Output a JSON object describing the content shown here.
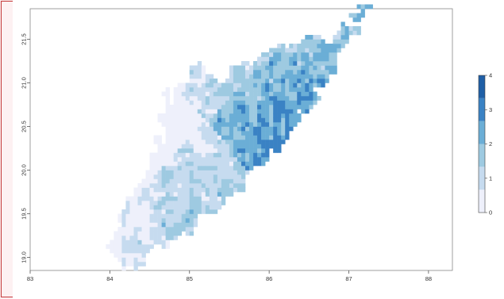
{
  "map": {
    "x_ticks": [
      "83",
      "84",
      "85",
      "86",
      "87",
      "88"
    ],
    "x_values": [
      83,
      84,
      85,
      86,
      87,
      88
    ],
    "y_ticks": [
      "19.0",
      "19.5",
      "20.0",
      "20.5",
      "21.0",
      "21.5"
    ],
    "y_values": [
      19.0,
      19.5,
      20.0,
      20.5,
      21.0,
      21.5
    ],
    "x_range": [
      83,
      88.3
    ],
    "y_range": [
      18.85,
      21.85
    ],
    "legend": {
      "ticks": [
        "0",
        "1",
        "2",
        "3",
        "4"
      ],
      "colors": [
        "#eef0fb",
        "#c6dbef",
        "#9ecae1",
        "#6baed6",
        "#3a82c4",
        "#1f5fa6"
      ]
    }
  },
  "colors": {
    "frame": "#c43a3a",
    "background": "#fdf1f2"
  }
}
